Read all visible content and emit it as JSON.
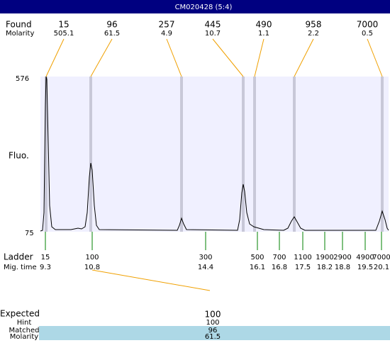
{
  "header": {
    "title": "CM020428 (5:4)"
  },
  "found": {
    "label": "Found",
    "molarity_label": "Molarity",
    "peaks": [
      {
        "size": "15",
        "molarity": "505.1"
      },
      {
        "size": "96",
        "molarity": "61.5"
      },
      {
        "size": "257",
        "molarity": "4.9"
      },
      {
        "size": "445",
        "molarity": "10.7"
      },
      {
        "size": "490",
        "molarity": "1.1"
      },
      {
        "size": "958",
        "molarity": "2.2"
      },
      {
        "size": "7000",
        "molarity": "0.5"
      }
    ]
  },
  "axis": {
    "label": "Fluo.",
    "max": "576",
    "min": "75"
  },
  "ladder": {
    "label": "Ladder",
    "time_label": "Mig. time",
    "peaks": [
      {
        "size": "15",
        "time": "9.3"
      },
      {
        "size": "100",
        "time": "10.8"
      },
      {
        "size": "300",
        "time": "14.4"
      },
      {
        "size": "500",
        "time": "16.1"
      },
      {
        "size": "700",
        "time": "16.8"
      },
      {
        "size": "1100",
        "time": "17.5"
      },
      {
        "size": "1900",
        "time": "18.2"
      },
      {
        "size": "2900",
        "time": "18.8"
      },
      {
        "size": "4900",
        "time": "19.5"
      },
      {
        "size": "7000",
        "time": "20.1"
      }
    ]
  },
  "expected": {
    "label": "Expected",
    "value": "100",
    "rows": [
      {
        "label": "Hint",
        "value": "100"
      },
      {
        "label": "Matched",
        "value": "96"
      },
      {
        "label": "Molarity",
        "value": "61.5"
      }
    ]
  }
}
